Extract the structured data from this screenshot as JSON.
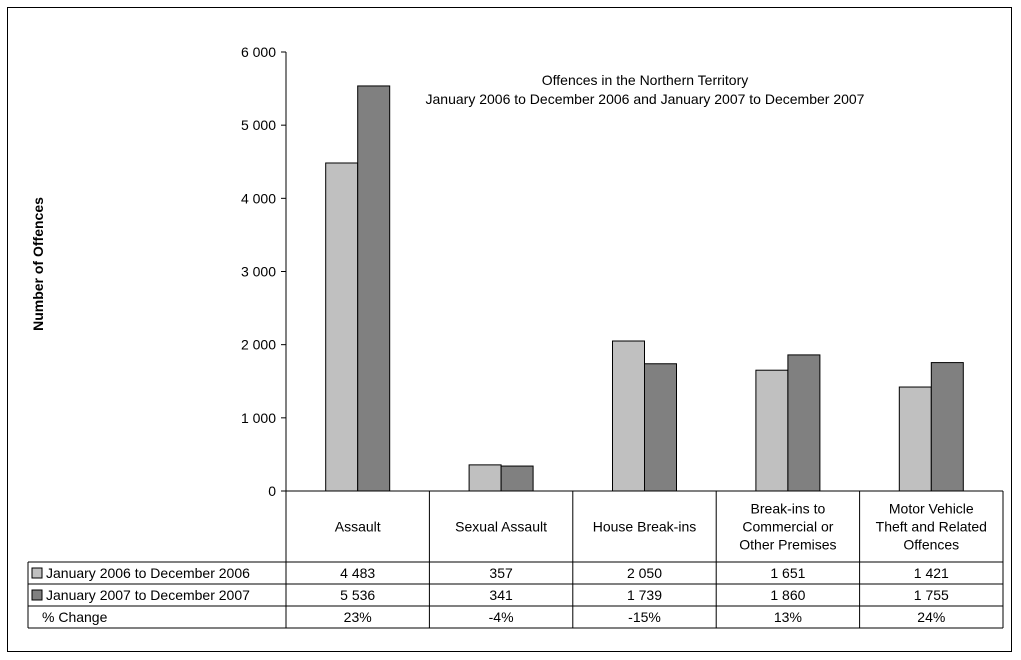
{
  "chart_data": {
    "type": "bar",
    "title": "Offences in the Northern Territory",
    "subtitle": "January 2006 to December 2006 and January 2007 to December 2007",
    "ylabel": "Number of Offences",
    "xlabel": "",
    "ylim": [
      0,
      6000
    ],
    "yticks": [
      "0",
      "1 000",
      "2 000",
      "3 000",
      "4 000",
      "5 000",
      "6 000"
    ],
    "categories": [
      [
        "Assault"
      ],
      [
        "Sexual Assault"
      ],
      [
        "House Break-ins"
      ],
      [
        "Break-ins to",
        "Commercial or",
        "Other Premises"
      ],
      [
        "Motor Vehicle",
        "Theft and Related",
        "Offences"
      ]
    ],
    "series": [
      {
        "name": "January 2006 to December 2006",
        "color": "#c0c0c0",
        "values": [
          4483,
          357,
          2050,
          1651,
          1421
        ],
        "labels": [
          "4 483",
          "357",
          "2 050",
          "1 651",
          "1 421"
        ]
      },
      {
        "name": "January 2007 to December 2007",
        "color": "#808080",
        "values": [
          5536,
          341,
          1739,
          1860,
          1755
        ],
        "labels": [
          "5 536",
          "341",
          "1 739",
          "1 860",
          "1 755"
        ]
      }
    ],
    "change_row": {
      "label": "% Change",
      "values": [
        "23%",
        "-4%",
        "-15%",
        "13%",
        "24%"
      ]
    },
    "grid": false,
    "legend": "data-table"
  }
}
